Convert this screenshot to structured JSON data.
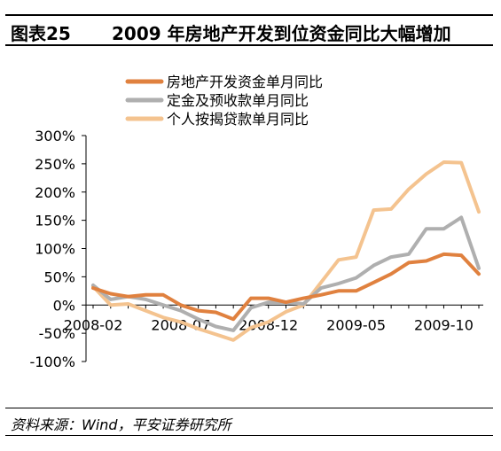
{
  "header": {
    "label": "图表25",
    "title": "2009 年房地产开发到位资金同比大幅增加"
  },
  "source": "资料来源：Wind，平安证券研究所",
  "chart_data": {
    "type": "line",
    "x": [
      "2008-02",
      "2008-03",
      "2008-04",
      "2008-05",
      "2008-06",
      "2008-07",
      "2008-08",
      "2008-09",
      "2008-10",
      "2008-11",
      "2008-12",
      "2009-01",
      "2009-02",
      "2009-03",
      "2009-04",
      "2009-05",
      "2009-06",
      "2009-07",
      "2009-08",
      "2009-09",
      "2009-10",
      "2009-11",
      "2009-12"
    ],
    "x_tick_labels": [
      "2008-02",
      "2008-07",
      "2008-12",
      "2009-05",
      "2009-10"
    ],
    "y_tick_labels": [
      "300%",
      "250%",
      "200%",
      "150%",
      "100%",
      "50%",
      "0%",
      "-50%",
      "-100%"
    ],
    "ylim": [
      -100,
      300
    ],
    "unit": "%",
    "legend_position": "top",
    "series": [
      {
        "name": "房地产开发资金单月同比",
        "color": "#E0813F",
        "values": [
          30,
          20,
          15,
          18,
          18,
          0,
          -10,
          -13,
          -25,
          12,
          12,
          5,
          12,
          18,
          25,
          25,
          40,
          55,
          75,
          78,
          90,
          88,
          55
        ]
      },
      {
        "name": "定金及预收款单月同比",
        "color": "#AFAFAF",
        "values": [
          35,
          10,
          15,
          10,
          0,
          -10,
          -25,
          -38,
          -45,
          -5,
          5,
          5,
          2,
          30,
          38,
          48,
          70,
          85,
          90,
          135,
          135,
          155,
          65
        ]
      },
      {
        "name": "个人按揭贷款单月同比",
        "color": "#F4C38F",
        "values": [
          33,
          0,
          2,
          -10,
          -22,
          -30,
          -42,
          -52,
          -62,
          -40,
          -30,
          -12,
          0,
          40,
          80,
          85,
          168,
          170,
          205,
          232,
          253,
          252,
          165
        ]
      }
    ]
  }
}
